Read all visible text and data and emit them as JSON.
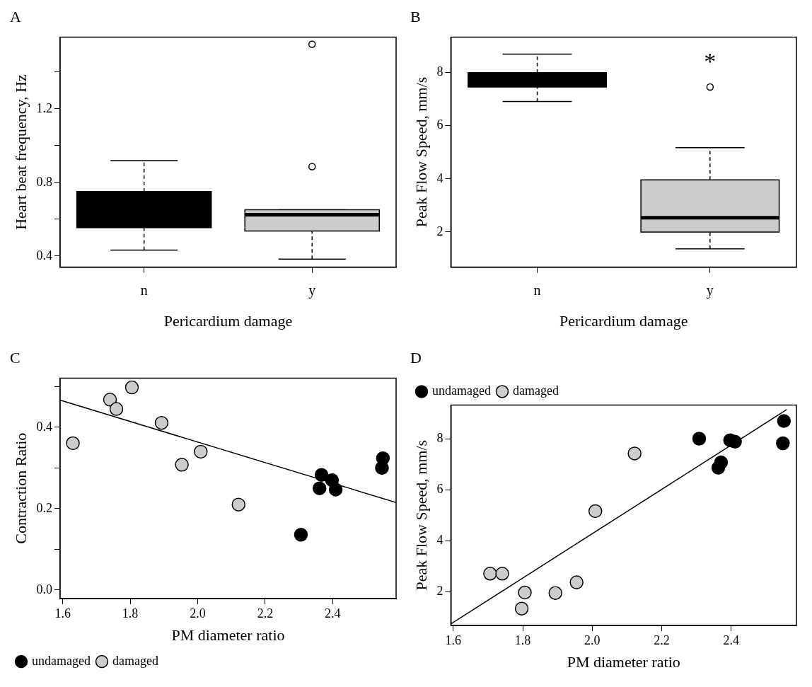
{
  "chart_data": [
    {
      "type": "box",
      "title": "A",
      "xlabel": "Pericardium damage",
      "ylabel": "Heart beat frequency, Hz",
      "categories": [
        "n",
        "y"
      ],
      "colors": [
        "#000000",
        "#cccccc"
      ],
      "boxes": [
        {
          "low": 0.433,
          "q1": 0.555,
          "median": 0.65,
          "q3": 0.751,
          "high": 0.919
        },
        {
          "low": 0.384,
          "q1": 0.536,
          "median": 0.625,
          "q3": 0.652,
          "high": 0.652,
          "outliers": [
            0.886,
            1.551
          ]
        }
      ],
      "ylim": [
        0.34,
        1.59
      ],
      "yticks": [
        0.4,
        {
          "value": 0.6,
          "label": null
        },
        0.8,
        {
          "value": 1.0,
          "label": null
        },
        1.2,
        {
          "value": 1.4,
          "label": null
        }
      ],
      "grid": false
    },
    {
      "type": "box",
      "title": "B",
      "xlabel": "Pericardium damage",
      "ylabel": "Peak Flow Speed, mm/s",
      "categories": [
        "n",
        "y"
      ],
      "colors": [
        "#000000",
        "#cccccc"
      ],
      "boxes": [
        {
          "low": 6.91,
          "q1": 7.45,
          "median": 7.7,
          "q3": 7.99,
          "high": 8.69
        },
        {
          "low": 1.37,
          "q1": 2.0,
          "median": 2.54,
          "q3": 3.96,
          "high": 5.17,
          "outliers": [
            7.45
          ]
        }
      ],
      "ylim": [
        0.68,
        9.33
      ],
      "yticks": [
        2,
        4,
        6,
        8
      ],
      "grid": false,
      "annotations": [
        "*"
      ]
    },
    {
      "type": "scatter",
      "title": "C",
      "xlabel": "PM diameter ratio",
      "ylabel": "Contraction Ratio",
      "legend": "bottom left",
      "grid": false,
      "series": [
        {
          "name": "undamaged",
          "color": "#000000",
          "marker": "circle",
          "x": [
            2.306,
            2.367,
            2.361,
            2.398,
            2.409,
            2.549,
            2.546
          ],
          "values": [
            0.136,
            0.283,
            0.25,
            0.27,
            0.247,
            0.324,
            0.3
          ]
        },
        {
          "name": "damaged",
          "color": "#cccccc",
          "marker": "circle",
          "x": [
            1.63,
            1.74,
            1.759,
            1.805,
            1.893,
            1.953,
            2.009,
            2.121
          ],
          "values": [
            0.361,
            0.468,
            0.445,
            0.498,
            0.411,
            0.308,
            0.34,
            0.21
          ]
        },
        {
          "type": "line",
          "color": "#000000",
          "marker": "none",
          "x": [
            1.592,
            2.588
          ],
          "values": [
            0.467,
            0.215
          ]
        }
      ],
      "xlim": [
        1.592,
        2.588
      ],
      "xticks": [
        1.6,
        1.8,
        {
          "value": 2.0,
          "label": "2.0"
        },
        2.2,
        2.4
      ],
      "ylim": [
        -0.021,
        0.521
      ],
      "yticks": [
        {
          "value": 0,
          "label": "0.0"
        },
        {
          "value": 0.1,
          "label": null
        },
        0.2,
        {
          "value": 0.3,
          "label": null
        },
        0.4,
        {
          "value": 0.5,
          "label": null
        }
      ]
    },
    {
      "type": "scatter",
      "title": "D",
      "xlabel": "PM diameter ratio",
      "ylabel": "Peak Flow Speed, mm/s",
      "legend": "top left",
      "grid": false,
      "series": [
        {
          "name": "undamaged",
          "color": "#000000",
          "marker": "circle",
          "x": [
            2.308,
            2.371,
            2.363,
            2.397,
            2.411,
            2.552,
            2.549
          ],
          "values": [
            8.01,
            7.08,
            6.87,
            7.95,
            7.89,
            8.7,
            7.83
          ]
        },
        {
          "name": "damaged",
          "color": "#cccccc",
          "marker": "circle",
          "x": [
            1.706,
            1.741,
            1.806,
            1.797,
            1.894,
            1.955,
            2.009,
            2.122
          ],
          "values": [
            2.72,
            2.72,
            1.98,
            1.35,
            1.96,
            2.38,
            5.17,
            7.43
          ]
        },
        {
          "type": "line",
          "color": "#000000",
          "marker": "none",
          "x": [
            1.593,
            2.56
          ],
          "values": [
            0.75,
            9.15
          ]
        }
      ],
      "xlim": [
        1.593,
        2.588
      ],
      "xticks": [
        1.6,
        1.8,
        {
          "value": 2.0,
          "label": "2.0"
        },
        2.2,
        2.4
      ],
      "ylim": [
        0.69,
        9.33
      ],
      "yticks": [
        2,
        4,
        6,
        8
      ]
    }
  ]
}
